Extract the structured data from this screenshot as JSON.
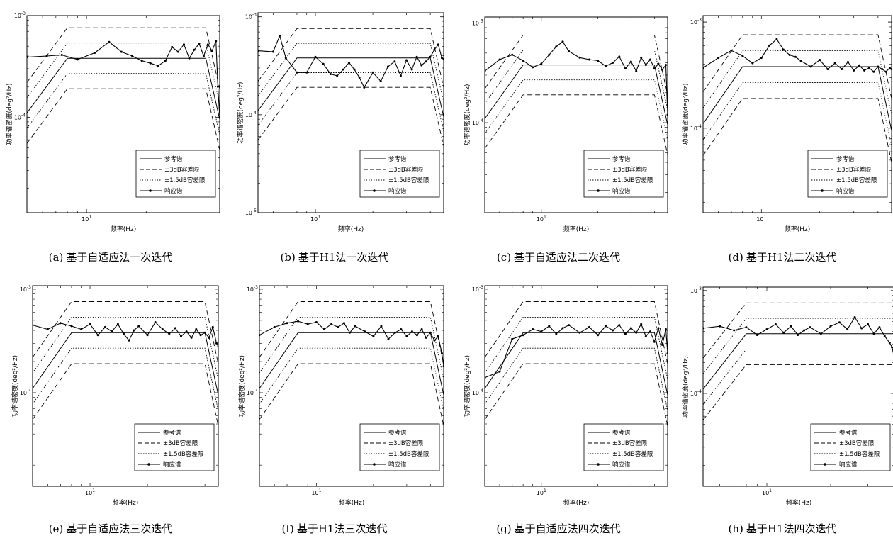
{
  "figure": {
    "ylabel": "功率谱密度(deg²/Hz)",
    "xlabel": "频率(Hz)",
    "legend": {
      "reference": "参考谱",
      "tol3": "±3dB容差限",
      "tol15": "±1.5dB容差限",
      "response": "响应谱"
    },
    "ytick_labels": {
      "1e-3": "10-3",
      "1e-4": "10-4",
      "1e-5": "10-5"
    },
    "xtick_label": "101",
    "colors": {
      "line": "#000000",
      "background": "#ffffff"
    }
  },
  "panels": [
    {
      "label": "(a)",
      "caption": "基于自适应法一次迭代"
    },
    {
      "label": "(b)",
      "caption": "基于H1法一次迭代"
    },
    {
      "label": "(c)",
      "caption": "基于自适应法二次迭代"
    },
    {
      "label": "(d)",
      "caption": "基于H1法二次迭代"
    },
    {
      "label": "(e)",
      "caption": "基于自适应法三次迭代"
    },
    {
      "label": "(f)",
      "caption": "基于H1法三次迭代"
    },
    {
      "label": "(g)",
      "caption": "基于自适应法四次迭代"
    },
    {
      "label": "(h)",
      "caption": "基于H1法四次迭代"
    }
  ],
  "chart_data": [
    {
      "type": "line",
      "panel": "(a)",
      "x_scale": "log",
      "y_scale": "log",
      "xlim": [
        5,
        47
      ],
      "ylim": [
        1.15e-05,
        0.001
      ],
      "reference": {
        "x": [
          5,
          8,
          40,
          47
        ],
        "y": [
          0.00011,
          0.00038,
          0.00038,
          9.5e-05
        ]
      },
      "response": {
        "x": [
          5,
          6.3,
          7.5,
          9,
          11,
          13,
          15,
          17,
          19,
          21,
          23,
          25,
          27,
          29,
          31,
          33,
          35,
          37,
          39,
          41,
          43,
          45,
          46,
          47
        ],
        "y": [
          0.00039,
          0.0004,
          0.00041,
          0.00037,
          0.00043,
          0.00055,
          0.00044,
          0.0004,
          0.00036,
          0.00034,
          0.00032,
          0.00036,
          0.00049,
          0.00044,
          0.00052,
          0.00038,
          0.00046,
          0.00053,
          0.0004,
          0.00052,
          0.00045,
          0.00056,
          0.0002,
          0.0001
        ]
      }
    },
    {
      "type": "line",
      "panel": "(b)",
      "x_scale": "log",
      "y_scale": "log",
      "xlim": [
        5,
        47
      ],
      "ylim": [
        1e-05,
        0.0011
      ],
      "reference": {
        "x": [
          5,
          8,
          40,
          47
        ],
        "y": [
          0.00011,
          0.00038,
          0.00038,
          9.5e-05
        ]
      },
      "response": {
        "x": [
          5,
          6,
          6.5,
          7,
          8,
          9,
          10,
          11,
          12,
          13,
          14,
          15,
          16,
          17,
          18,
          20,
          22,
          24,
          26,
          28,
          30,
          32,
          34,
          36,
          38,
          40,
          42,
          44,
          46,
          47
        ],
        "y": [
          0.00045,
          0.00044,
          0.00064,
          0.00038,
          0.00027,
          0.00027,
          0.00039,
          0.00033,
          0.00026,
          0.00025,
          0.00029,
          0.00034,
          0.00029,
          0.00024,
          0.00019,
          0.00027,
          0.00022,
          0.00031,
          0.00035,
          0.00025,
          0.00036,
          0.00029,
          0.00039,
          0.00032,
          0.00035,
          0.00039,
          0.00046,
          0.00052,
          0.00038,
          0.00037
        ]
      }
    },
    {
      "type": "line",
      "panel": "(c)",
      "x_scale": "log",
      "y_scale": "log",
      "xlim": [
        5,
        47
      ],
      "ylim": [
        1.25e-05,
        0.00115
      ],
      "reference": {
        "x": [
          5,
          8,
          40,
          47
        ],
        "y": [
          0.00011,
          0.00038,
          0.00038,
          9.5e-05
        ]
      },
      "response": {
        "x": [
          5,
          6,
          7,
          8,
          9,
          10,
          11,
          12,
          13,
          14,
          16,
          18,
          20,
          22,
          24,
          26,
          28,
          30,
          32,
          34,
          36,
          38,
          40,
          42,
          44,
          46,
          47
        ],
        "y": [
          0.00033,
          0.00043,
          0.00048,
          0.00042,
          0.00036,
          0.00039,
          0.00048,
          0.00058,
          0.00065,
          0.00052,
          0.00045,
          0.00043,
          0.00042,
          0.00037,
          0.0004,
          0.00046,
          0.00035,
          0.00041,
          0.00033,
          0.00045,
          0.00038,
          0.00043,
          0.00035,
          0.00039,
          0.00034,
          0.00038,
          0.00012
        ]
      }
    },
    {
      "type": "line",
      "panel": "(d)",
      "x_scale": "log",
      "y_scale": "log",
      "xlim": [
        5,
        47
      ],
      "ylim": [
        1.6e-05,
        0.00115
      ],
      "reference": {
        "x": [
          5,
          8,
          40,
          47
        ],
        "y": [
          0.00011,
          0.00038,
          0.00038,
          9.5e-05
        ]
      },
      "response": {
        "x": [
          5,
          6,
          7,
          8,
          9,
          10,
          11,
          12,
          13,
          14,
          15,
          16,
          18,
          20,
          22,
          24,
          26,
          28,
          30,
          32,
          34,
          36,
          38,
          40,
          42,
          44,
          46,
          47
        ],
        "y": [
          0.00037,
          0.00046,
          0.00054,
          0.00048,
          0.00041,
          0.00046,
          0.0006,
          0.00069,
          0.00055,
          0.00049,
          0.00047,
          0.00043,
          0.00038,
          0.00044,
          0.00036,
          0.00041,
          0.00036,
          0.00042,
          0.00035,
          0.00039,
          0.00035,
          0.00037,
          0.00034,
          0.00038,
          0.00036,
          0.00034,
          0.00037,
          0.00036
        ]
      }
    },
    {
      "type": "line",
      "panel": "(e)",
      "x_scale": "log",
      "y_scale": "log",
      "xlim": [
        5,
        47
      ],
      "ylim": [
        1.25e-05,
        0.00108
      ],
      "reference": {
        "x": [
          5,
          8,
          40,
          47
        ],
        "y": [
          0.00011,
          0.00038,
          0.00038,
          9.5e-05
        ]
      },
      "response": {
        "x": [
          5,
          6,
          7,
          8,
          9,
          10,
          11,
          12,
          13,
          14,
          15,
          16,
          17,
          18,
          20,
          22,
          24,
          26,
          28,
          30,
          32,
          34,
          36,
          38,
          40,
          42,
          44,
          46,
          47
        ],
        "y": [
          0.00045,
          0.00041,
          0.00047,
          0.00044,
          0.00041,
          0.00046,
          0.00036,
          0.00043,
          0.00039,
          0.00046,
          0.00037,
          0.00032,
          0.0004,
          0.00044,
          0.00036,
          0.00048,
          0.00041,
          0.00037,
          0.00042,
          0.00035,
          0.00039,
          0.00034,
          0.00041,
          0.00036,
          0.00038,
          0.00034,
          0.00043,
          0.0003,
          0.00028
        ]
      }
    },
    {
      "type": "line",
      "panel": "(f)",
      "x_scale": "log",
      "y_scale": "log",
      "xlim": [
        5,
        47
      ],
      "ylim": [
        1.25e-05,
        0.00108
      ],
      "reference": {
        "x": [
          5,
          8,
          40,
          47
        ],
        "y": [
          0.00011,
          0.00038,
          0.00038,
          9.5e-05
        ]
      },
      "response": {
        "x": [
          5,
          6,
          7,
          8,
          9,
          10,
          11,
          12,
          13,
          14,
          15,
          16,
          18,
          20,
          22,
          24,
          26,
          28,
          30,
          32,
          34,
          36,
          38,
          40,
          42,
          44,
          46,
          47
        ],
        "y": [
          0.00036,
          0.00043,
          0.00047,
          0.00049,
          0.00046,
          0.00048,
          0.00041,
          0.00046,
          0.00043,
          0.00047,
          0.00038,
          0.00044,
          0.00039,
          0.00035,
          0.00044,
          0.00033,
          0.00038,
          0.00041,
          0.00035,
          0.00039,
          0.00036,
          0.00041,
          0.00034,
          0.00038,
          0.00032,
          0.00035,
          0.00024,
          0.00018
        ]
      }
    },
    {
      "type": "line",
      "panel": "(g)",
      "x_scale": "log",
      "y_scale": "log",
      "xlim": [
        5,
        47
      ],
      "ylim": [
        1.25e-05,
        0.00108
      ],
      "reference": {
        "x": [
          5,
          8,
          40,
          47
        ],
        "y": [
          0.00011,
          0.00038,
          0.00038,
          9.5e-05
        ]
      },
      "response": {
        "x": [
          5,
          6,
          7,
          8,
          9,
          10,
          11,
          12,
          13,
          14,
          16,
          18,
          20,
          22,
          24,
          26,
          28,
          30,
          32,
          34,
          36,
          38,
          40,
          42,
          44,
          46,
          47
        ],
        "y": [
          0.00014,
          0.00016,
          0.00033,
          0.00036,
          0.00041,
          0.00039,
          0.00044,
          0.00037,
          0.00042,
          0.00045,
          0.00038,
          0.00043,
          0.00036,
          0.00044,
          0.0004,
          0.00045,
          0.00037,
          0.00042,
          0.00038,
          0.00046,
          0.00035,
          0.00039,
          0.00031,
          0.00042,
          0.00029,
          0.00041,
          0.00024
        ]
      }
    },
    {
      "type": "line",
      "panel": "(h)",
      "x_scale": "log",
      "y_scale": "log",
      "xlim": [
        5,
        40
      ],
      "ylim": [
        1.25e-05,
        0.00108
      ],
      "reference": {
        "x": [
          5,
          8,
          40,
          47
        ],
        "y": [
          0.00011,
          0.00038,
          0.00038,
          9.5e-05
        ]
      },
      "response": {
        "x": [
          5,
          6,
          7,
          8,
          9,
          10,
          11,
          12,
          13,
          14,
          15,
          16,
          18,
          20,
          22,
          24,
          26,
          28,
          30,
          32,
          34,
          36,
          38,
          39,
          40
        ],
        "y": [
          0.00043,
          0.00045,
          0.00041,
          0.00044,
          0.00037,
          0.00042,
          0.00047,
          0.00039,
          0.00045,
          0.00037,
          0.00041,
          0.00044,
          0.00038,
          0.00045,
          0.00049,
          0.00042,
          0.00055,
          0.00043,
          0.00047,
          0.00038,
          0.00044,
          0.00036,
          0.00031,
          0.00028,
          0.00022
        ]
      }
    }
  ]
}
